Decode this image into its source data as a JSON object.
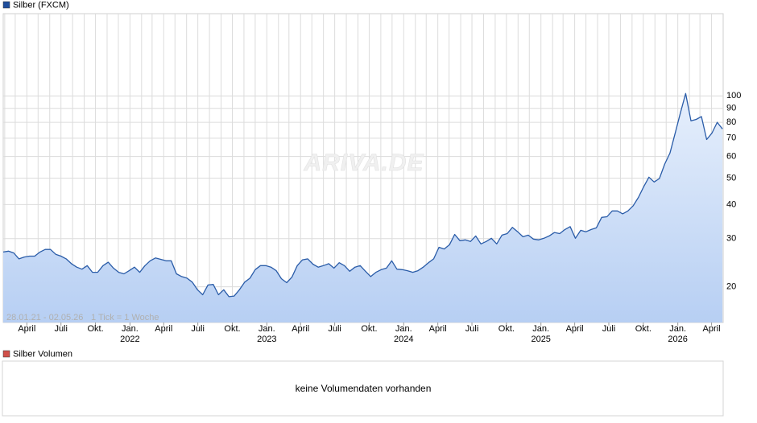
{
  "chart_data": {
    "type": "area",
    "title": "Silber (FXCM)",
    "legend_color": "#1f4e9c",
    "watermark": "ARIVA.DE",
    "range_note": "28.01.21 - 02.05.26",
    "tick_note": "1 Tick = 1 Woche",
    "log_scale": true,
    "grid": true,
    "xlim": [
      "28.01.21",
      "02.05.26"
    ],
    "ylim": [
      14.8,
      200
    ],
    "yticks": [
      20,
      30,
      40,
      50,
      60,
      70,
      80,
      90,
      100
    ],
    "xticks": [
      {
        "value": "01.04.21",
        "label": "April"
      },
      {
        "value": "01.07.21",
        "label": "Juli"
      },
      {
        "value": "01.10.21",
        "label": "Okt."
      },
      {
        "value": "01.01.22",
        "label": "Jan."
      },
      {
        "value": "01.04.22",
        "label": "April"
      },
      {
        "value": "01.07.22",
        "label": "Juli"
      },
      {
        "value": "01.10.22",
        "label": "Okt."
      },
      {
        "value": "01.01.23",
        "label": "Jan."
      },
      {
        "value": "01.04.23",
        "label": "April"
      },
      {
        "value": "01.07.23",
        "label": "Juli"
      },
      {
        "value": "01.10.23",
        "label": "Okt."
      },
      {
        "value": "01.01.24",
        "label": "Jan."
      },
      {
        "value": "01.04.24",
        "label": "April"
      },
      {
        "value": "01.07.24",
        "label": "Juli"
      },
      {
        "value": "01.10.24",
        "label": "Okt."
      },
      {
        "value": "01.01.25",
        "label": "Jan."
      },
      {
        "value": "01.04.25",
        "label": "April"
      },
      {
        "value": "01.07.25",
        "label": "Juli"
      },
      {
        "value": "01.10.25",
        "label": "Okt."
      },
      {
        "value": "01.01.26",
        "label": "Jan."
      },
      {
        "value": "01.04.26",
        "label": "April"
      }
    ],
    "x_year_labels": [
      {
        "value": "01.01.22",
        "label": "2022"
      },
      {
        "value": "01.01.23",
        "label": "2023"
      },
      {
        "value": "01.01.24",
        "label": "2024"
      },
      {
        "value": "01.01.25",
        "label": "2025"
      },
      {
        "value": "01.01.26",
        "label": "2026"
      }
    ],
    "x_minor_ticks": [
      "01.02.21",
      "01.03.21",
      "01.05.21",
      "01.06.21",
      "01.08.21",
      "01.09.21",
      "01.11.21",
      "01.12.21",
      "01.02.22",
      "01.03.22",
      "01.05.22",
      "01.06.22",
      "01.08.22",
      "01.09.22",
      "01.11.22",
      "01.12.22",
      "01.02.23",
      "01.03.23",
      "01.05.23",
      "01.06.23",
      "01.08.23",
      "01.09.23",
      "01.11.23",
      "01.12.23",
      "01.02.24",
      "01.03.24",
      "01.05.24",
      "01.06.24",
      "01.08.24",
      "01.09.24",
      "01.11.24",
      "01.12.24",
      "01.02.25",
      "01.03.25",
      "01.05.25",
      "01.06.25",
      "01.08.25",
      "01.09.25",
      "01.11.25",
      "01.12.25",
      "01.02.26",
      "01.03.26"
    ],
    "x": [
      "28.01.21",
      "11.02.21",
      "25.02.21",
      "11.03.21",
      "25.03.21",
      "08.04.21",
      "22.04.21",
      "06.05.21",
      "20.05.21",
      "03.06.21",
      "17.06.21",
      "01.07.21",
      "15.07.21",
      "29.07.21",
      "12.08.21",
      "26.08.21",
      "09.09.21",
      "23.09.21",
      "07.10.21",
      "21.10.21",
      "04.11.21",
      "18.11.21",
      "02.12.21",
      "16.12.21",
      "30.12.21",
      "13.01.22",
      "27.01.22",
      "10.02.22",
      "24.02.22",
      "10.03.22",
      "24.03.22",
      "07.04.22",
      "21.04.22",
      "05.05.22",
      "19.05.22",
      "02.06.22",
      "16.06.22",
      "30.06.22",
      "14.07.22",
      "28.07.22",
      "11.08.22",
      "25.08.22",
      "08.09.22",
      "22.09.22",
      "06.10.22",
      "20.10.22",
      "03.11.22",
      "17.11.22",
      "01.12.22",
      "15.12.22",
      "29.12.22",
      "12.01.23",
      "26.01.23",
      "09.02.23",
      "23.02.23",
      "09.03.23",
      "23.03.23",
      "06.04.23",
      "20.04.23",
      "04.05.23",
      "18.05.23",
      "01.06.23",
      "15.06.23",
      "29.06.23",
      "13.07.23",
      "27.07.23",
      "10.08.23",
      "24.08.23",
      "07.09.23",
      "21.09.23",
      "05.10.23",
      "19.10.23",
      "02.11.23",
      "16.11.23",
      "30.11.23",
      "14.12.23",
      "28.12.23",
      "11.01.24",
      "25.01.24",
      "08.02.24",
      "22.02.24",
      "07.03.24",
      "21.03.24",
      "04.04.24",
      "18.04.24",
      "02.05.24",
      "16.05.24",
      "30.05.24",
      "13.06.24",
      "27.06.24",
      "11.07.24",
      "25.07.24",
      "08.08.24",
      "22.08.24",
      "05.09.24",
      "19.09.24",
      "03.10.24",
      "17.10.24",
      "31.10.24",
      "14.11.24",
      "28.11.24",
      "12.12.24",
      "26.12.24",
      "09.01.25",
      "23.01.25",
      "06.02.25",
      "20.02.25",
      "06.03.25",
      "20.03.25",
      "03.04.25",
      "17.04.25",
      "01.05.25",
      "15.05.25",
      "29.05.25",
      "12.06.25",
      "26.06.25",
      "10.07.25",
      "24.07.25",
      "07.08.25",
      "21.08.25",
      "04.09.25",
      "18.09.25",
      "02.10.25",
      "16.10.25",
      "30.10.25",
      "13.11.25",
      "27.11.25",
      "11.12.25",
      "25.12.25",
      "08.01.26",
      "22.01.26",
      "05.02.26",
      "19.02.26",
      "05.03.26",
      "19.03.26",
      "02.04.26",
      "16.04.26",
      "30.04.26"
    ],
    "series": [
      {
        "name": "Silber (FXCM)",
        "color": "#2a5ca8",
        "values": [
          26.8,
          27.0,
          26.6,
          25.3,
          25.7,
          25.9,
          25.9,
          26.8,
          27.4,
          27.4,
          26.3,
          25.9,
          25.3,
          24.3,
          23.6,
          23.2,
          23.9,
          22.6,
          22.6,
          23.9,
          24.6,
          23.4,
          22.6,
          22.3,
          22.9,
          23.6,
          22.6,
          23.9,
          24.9,
          25.5,
          25.2,
          24.9,
          24.9,
          22.3,
          21.8,
          21.5,
          20.8,
          19.5,
          18.7,
          20.3,
          20.4,
          18.7,
          19.5,
          18.4,
          18.5,
          19.5,
          20.8,
          21.5,
          23.1,
          23.9,
          23.9,
          23.6,
          22.9,
          21.4,
          20.7,
          21.7,
          23.9,
          25.1,
          25.3,
          24.2,
          23.6,
          23.9,
          24.3,
          23.4,
          24.5,
          23.9,
          22.8,
          23.6,
          23.9,
          22.8,
          21.8,
          22.6,
          23.1,
          23.4,
          24.9,
          23.2,
          23.1,
          22.9,
          22.6,
          22.9,
          23.6,
          24.5,
          25.3,
          27.9,
          27.5,
          28.5,
          31.1,
          29.5,
          29.7,
          29.3,
          30.7,
          28.7,
          29.3,
          30.1,
          28.7,
          30.9,
          31.3,
          33.0,
          31.8,
          30.5,
          30.9,
          29.9,
          29.7,
          30.1,
          30.7,
          31.6,
          31.3,
          32.4,
          33.2,
          30.1,
          32.2,
          31.8,
          32.4,
          32.9,
          35.9,
          36.1,
          37.9,
          37.9,
          37.0,
          37.9,
          39.6,
          42.5,
          46.5,
          50.4,
          48.4,
          49.8,
          56.3,
          61.7,
          73.0,
          86.7,
          102,
          81.0,
          82.0,
          84,
          69.2,
          73.0,
          80,
          75.7
        ]
      }
    ],
    "volume_title": "Silber Volumen",
    "volume_legend_color": "#d0504a",
    "volume_note": "keine Volumendaten vorhanden"
  }
}
